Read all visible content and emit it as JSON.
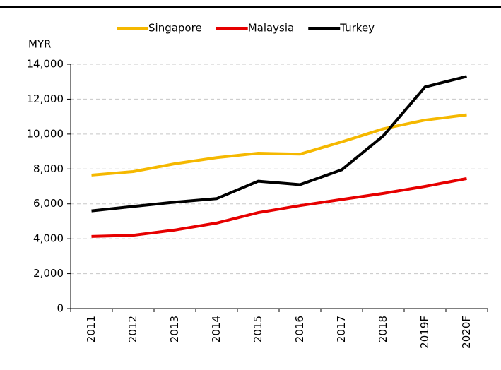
{
  "chart_data": {
    "type": "line",
    "y_label": "MYR",
    "categories": [
      "2011",
      "2012",
      "2013",
      "2014",
      "2015",
      "2016",
      "2017",
      "2018",
      "2019F",
      "2020F"
    ],
    "series": [
      {
        "name": "Singapore",
        "color": "#f5b800",
        "values": [
          7650,
          7850,
          8300,
          8650,
          8900,
          8850,
          9550,
          10300,
          10800,
          11100
        ]
      },
      {
        "name": "Malaysia",
        "color": "#e60000",
        "values": [
          4130,
          4200,
          4500,
          4900,
          5500,
          5900,
          6250,
          6600,
          7000,
          7450
        ]
      },
      {
        "name": "Turkey",
        "color": "#000000",
        "values": [
          5600,
          5850,
          6100,
          6300,
          7300,
          7100,
          7950,
          9900,
          12700,
          13300
        ]
      }
    ],
    "ylim": [
      0,
      14000
    ],
    "yticks": [
      0,
      {
        "value": 2000,
        "label": "2,000"
      },
      {
        "value": 4000,
        "label": "4,000"
      },
      {
        "value": 6000,
        "label": "6,000"
      },
      {
        "value": 8000,
        "label": "8,000"
      },
      {
        "value": 10000,
        "label": "10,000"
      },
      {
        "value": 12000,
        "label": "12,000"
      },
      {
        "value": 14000,
        "label": "14,000"
      }
    ],
    "grid": true,
    "legend": "top"
  }
}
